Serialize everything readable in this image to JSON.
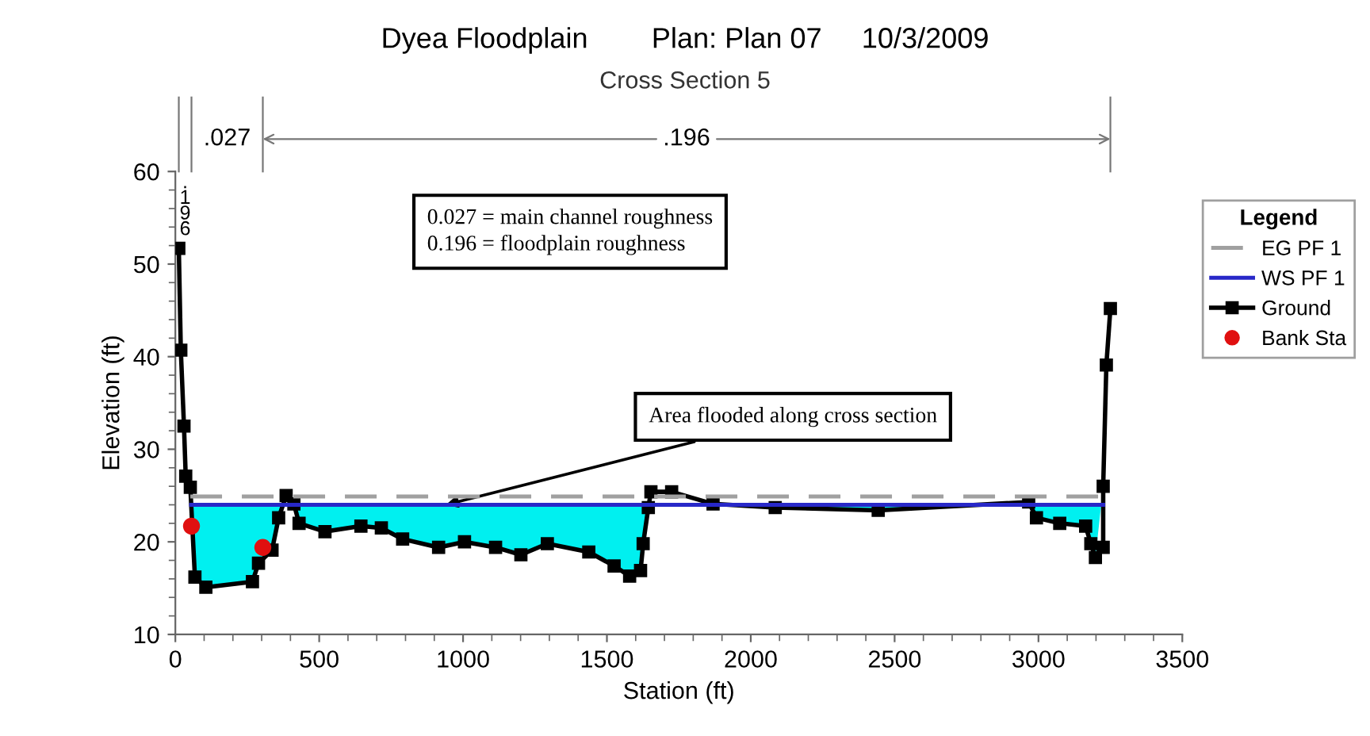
{
  "chart_data": {
    "type": "line",
    "title": "Dyea Floodplain        Plan: Plan 07     10/3/2009",
    "subtitle": "Cross Section 5",
    "xlabel": "Station (ft)",
    "ylabel": "Elevation (ft)",
    "legend_title": "Legend",
    "legend": "right",
    "grid": false,
    "xlim": [
      0,
      3500
    ],
    "xticks": [
      0,
      500,
      1000,
      1500,
      2000,
      2500,
      3000,
      3500
    ],
    "ylim": [
      10,
      60
    ],
    "yticks": [
      10,
      20,
      30,
      40,
      50,
      60
    ],
    "series": [
      {
        "name": "EG PF 1",
        "type": "line",
        "line_style": "dashed",
        "color": "#a0a0a0",
        "x": [
          52,
          3225
        ],
        "values": [
          24.9,
          24.9
        ]
      },
      {
        "name": "WS PF 1",
        "type": "line",
        "line_style": "solid",
        "color": "#2828c8",
        "x": [
          55,
          3225
        ],
        "values": [
          24.0,
          24.0
        ]
      },
      {
        "name": "Ground",
        "line_style": "solid",
        "marker": "square",
        "color": "#000000",
        "x": [
          12,
          19,
          30,
          36,
          52,
          68,
          106,
          268,
          289,
          336,
          359,
          385,
          412,
          430,
          520,
          645,
          716,
          790,
          915,
          1005,
          1113,
          1201,
          1293,
          1437,
          1525,
          1579,
          1617,
          1626,
          1644,
          1653,
          1725,
          1869,
          2085,
          2443,
          2966,
          2993,
          3074,
          3164,
          3182,
          3198,
          3225,
          3225,
          3236,
          3250
        ],
        "values": [
          51.7,
          40.7,
          32.5,
          27.1,
          25.9,
          16.2,
          15.1,
          15.7,
          17.7,
          19.1,
          22.6,
          25.0,
          24.1,
          22.0,
          21.1,
          21.7,
          21.5,
          20.3,
          19.4,
          20.0,
          19.4,
          18.6,
          19.8,
          18.9,
          17.4,
          16.3,
          16.9,
          19.8,
          23.7,
          25.4,
          25.4,
          24.1,
          23.7,
          23.4,
          24.3,
          22.6,
          22.0,
          21.7,
          19.8,
          18.3,
          19.4,
          26.0,
          39.1,
          45.2
        ]
      },
      {
        "name": "Bank Sta",
        "type": "scatter",
        "marker": "circle",
        "color": "#e01010",
        "x": [
          56,
          304
        ],
        "values": [
          21.7,
          19.4
        ]
      }
    ],
    "annotations": [
      ".196",
      ".027",
      ".196",
      "0.027 = main channel roughness\n0.196 = floodplain roughness",
      {
        "text": "Area flooded along cross section",
        "x": 940,
        "y": 24.0
      }
    ]
  }
}
